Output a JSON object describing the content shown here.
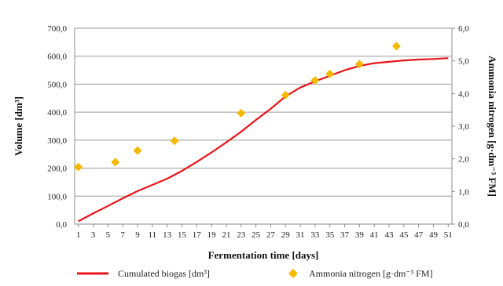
{
  "chart_data": {
    "type": "line",
    "x": [
      1,
      3,
      5,
      7,
      9,
      11,
      13,
      15,
      17,
      19,
      21,
      23,
      25,
      27,
      29,
      31,
      33,
      35,
      37,
      39,
      41,
      43,
      45,
      47,
      49,
      51
    ],
    "xlabel": "Fermentation time [days]",
    "ylabel": "Volume [dm³]",
    "y2label": "Ammonia nitrogen [g·dm⁻³ FM]",
    "ylim": [
      0,
      700
    ],
    "y2lim": [
      0,
      6
    ],
    "y_ticks": [
      "0,0",
      "100,0",
      "200,0",
      "300,0",
      "400,0",
      "500,0",
      "600,0",
      "700,0"
    ],
    "y2_ticks": [
      "0,0",
      "1,0",
      "2,0",
      "3,0",
      "4,0",
      "5,0",
      "6,0"
    ],
    "grid": true,
    "legend_placement": "bottom",
    "series": [
      {
        "name": "Cumulated biogas [dm³]",
        "axis": "left",
        "kind": "line",
        "color": "#e8141a",
        "values": [
          10,
          38,
          65,
          92,
          118,
          140,
          162,
          190,
          222,
          256,
          292,
          330,
          372,
          412,
          456,
          488,
          510,
          530,
          550,
          565,
          575,
          580,
          585,
          588,
          590,
          593
        ]
      },
      {
        "name": "Ammonia nitrogen [g·dm⁻³ FM]",
        "axis": "right",
        "kind": "scatter",
        "marker": "diamond",
        "color": "#f5b800",
        "points": [
          {
            "x": 1,
            "y": 1.75
          },
          {
            "x": 6,
            "y": 1.9
          },
          {
            "x": 9,
            "y": 2.25
          },
          {
            "x": 14,
            "y": 2.55
          },
          {
            "x": 23,
            "y": 3.4
          },
          {
            "x": 29,
            "y": 3.95
          },
          {
            "x": 33,
            "y": 4.4
          },
          {
            "x": 35,
            "y": 4.6
          },
          {
            "x": 39,
            "y": 4.9
          },
          {
            "x": 44,
            "y": 5.45
          }
        ]
      }
    ]
  }
}
